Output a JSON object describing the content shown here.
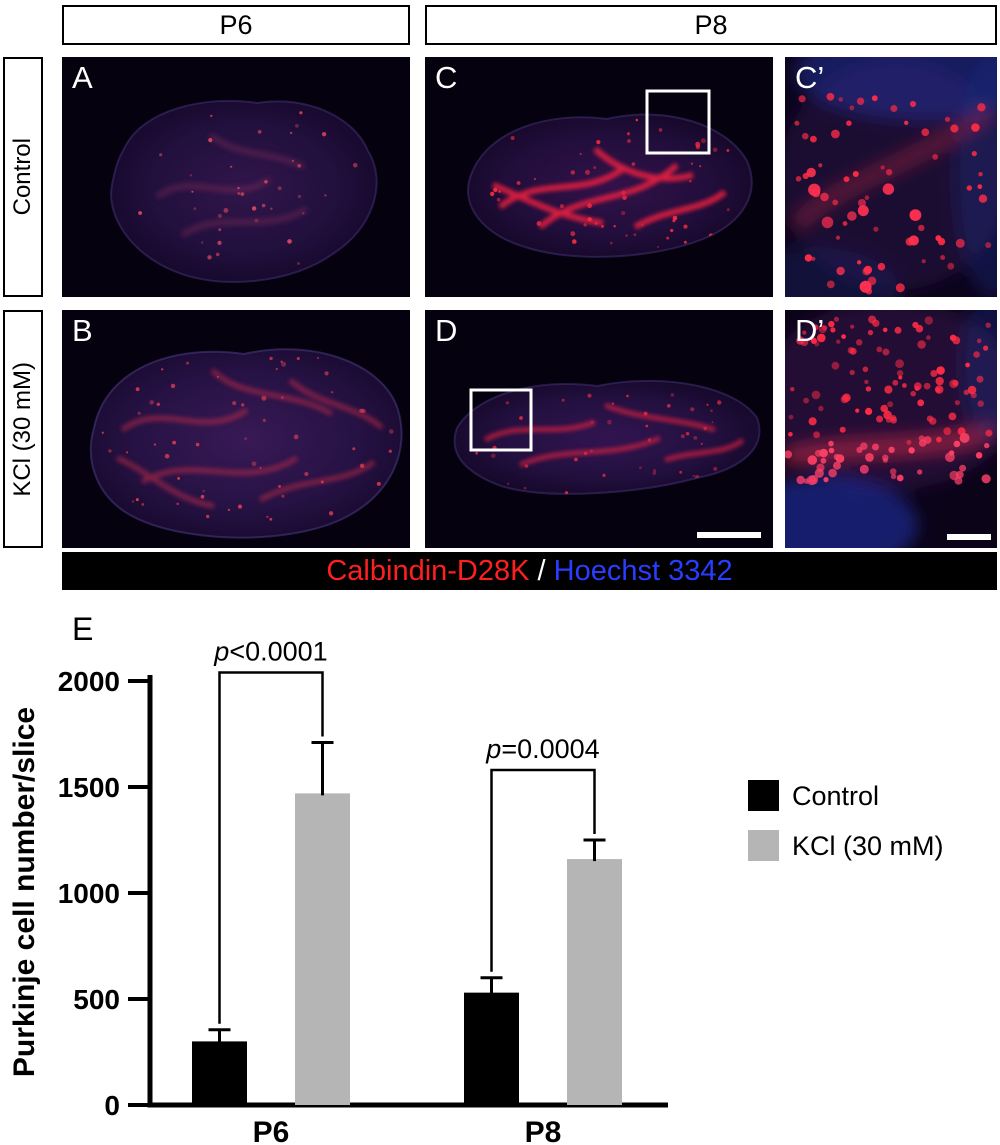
{
  "figure": {
    "col_headers": [
      {
        "label": "P6"
      },
      {
        "label": "P8"
      }
    ],
    "row_headers": [
      {
        "label": "Control"
      },
      {
        "label": "KCl (30 mM)"
      }
    ],
    "panels": [
      {
        "label": "A"
      },
      {
        "label": "C"
      },
      {
        "label": "C’"
      },
      {
        "label": "B"
      },
      {
        "label": "D"
      },
      {
        "label": "D’"
      }
    ],
    "stain_bar": {
      "red_label": "Calbindin-D28K",
      "separator": " / ",
      "blue_label": "Hoechst 3342",
      "red_color": "#ff1f1f",
      "blue_color": "#2a3cff"
    }
  },
  "chart_data": {
    "type": "bar",
    "panel_label": "E",
    "title": "",
    "xlabel": "",
    "ylabel": "Purkinje cell number/slice",
    "ylim": [
      0,
      2000
    ],
    "yticks": [
      0,
      500,
      1000,
      1500,
      2000
    ],
    "categories": [
      "P6",
      "P8"
    ],
    "series": [
      {
        "name": "Control",
        "color": "#000000",
        "values": [
          300,
          530
        ],
        "errors": [
          55,
          70
        ]
      },
      {
        "name": "KCl (30 mM)",
        "color": "#b5b5b5",
        "values": [
          1470,
          1160
        ],
        "errors": [
          240,
          90
        ]
      }
    ],
    "significance": [
      {
        "group": "P6",
        "label": "p<0.0001"
      },
      {
        "group": "P8",
        "label": "p=0.0004"
      }
    ],
    "legend_position": "right",
    "grid": false
  }
}
